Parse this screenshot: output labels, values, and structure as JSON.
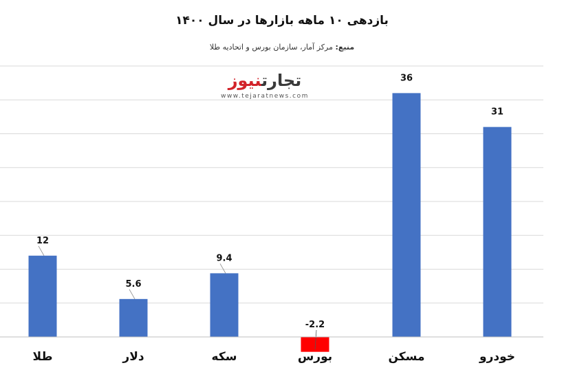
{
  "header": {
    "title": "بازدهی ۱۰ ماهه بازارها در سال ۱۴۰۰",
    "source_label": "منبع:",
    "source_text": "مرکز آمار، سازمان بورس و اتحادیه طلا"
  },
  "watermark": {
    "brand_part1": "تجارت",
    "brand_part2": "نیوز",
    "url": "www.tejaratnews.com"
  },
  "colors": {
    "bar": "#4472c4",
    "negative_bar": "#ff0000",
    "gridline": "#d9d9d9",
    "axis": "#bfbfbf"
  },
  "chart_data": {
    "type": "bar",
    "categories": [
      "طلا",
      "دلار",
      "سکه",
      "بورس",
      "مسکن",
      "خودرو"
    ],
    "values": [
      12,
      5.6,
      9.4,
      -2.2,
      36,
      31
    ],
    "value_labels": [
      "12",
      "5.6",
      "9.4",
      "-2.2",
      "36",
      "31"
    ],
    "ylim": [
      0,
      40
    ],
    "grid": true,
    "gridline_step": 5
  }
}
